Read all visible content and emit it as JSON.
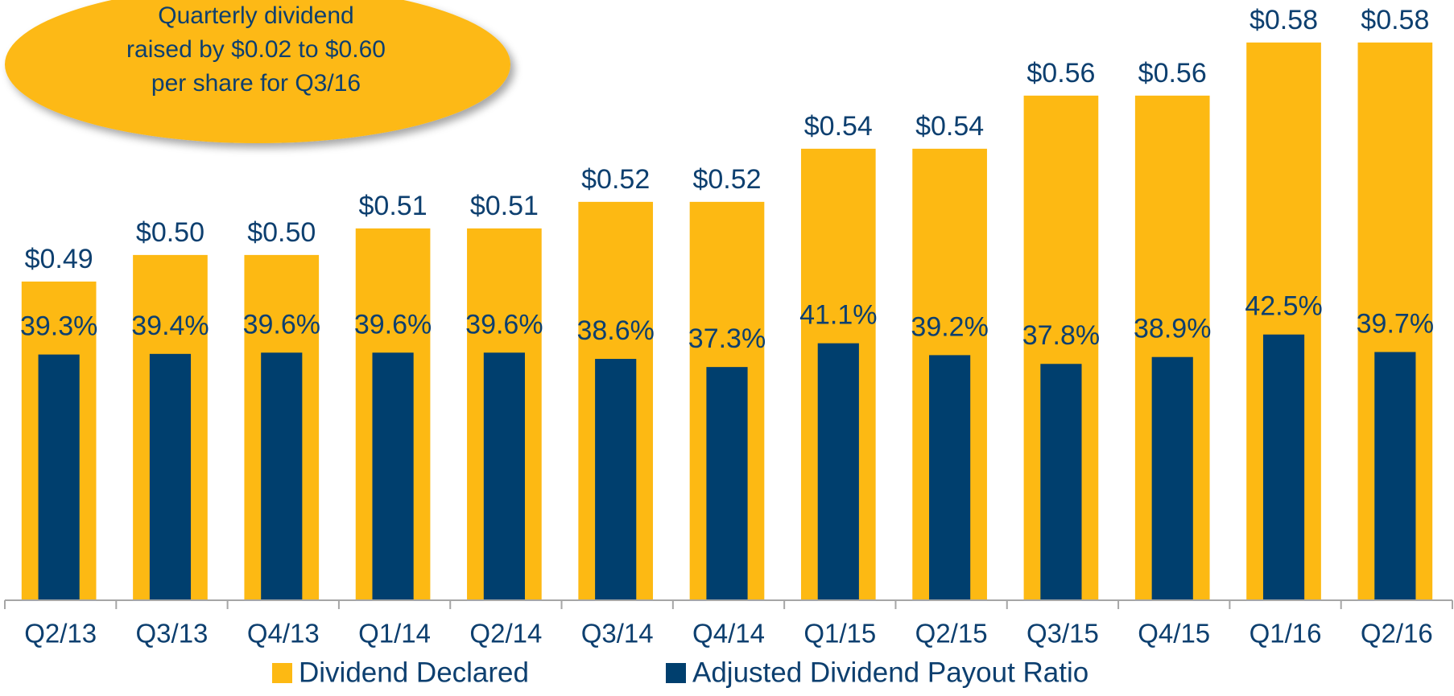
{
  "chart_data": {
    "type": "bar",
    "annotation": [
      "Quarterly dividend",
      "raised by $0.02 to $0.60",
      "per share for Q3/16"
    ],
    "categories": [
      "Q2/13",
      "Q3/13",
      "Q4/13",
      "Q1/14",
      "Q2/14",
      "Q3/14",
      "Q4/14",
      "Q1/15",
      "Q2/15",
      "Q3/15",
      "Q4/15",
      "Q1/16",
      "Q2/16"
    ],
    "series": [
      {
        "name": "Dividend Declared",
        "color": "#fdb913",
        "values": [
          0.49,
          0.5,
          0.5,
          0.51,
          0.51,
          0.52,
          0.52,
          0.54,
          0.54,
          0.56,
          0.56,
          0.58,
          0.58
        ],
        "value_labels": [
          "$0.49",
          "$0.50",
          "$0.50",
          "$0.51",
          "$0.51",
          "$0.52",
          "$0.52",
          "$0.54",
          "$0.54",
          "$0.56",
          "$0.56",
          "$0.58",
          "$0.58"
        ]
      },
      {
        "name": "Adjusted Dividend Payout Ratio",
        "color": "#003f6e",
        "axis": "y2",
        "values": [
          39.3,
          39.4,
          39.6,
          39.6,
          39.6,
          38.6,
          37.3,
          41.1,
          39.2,
          37.8,
          38.9,
          42.5,
          39.7
        ],
        "value_labels": [
          "39.3%",
          "39.4%",
          "39.6%",
          "39.6%",
          "39.6%",
          "38.6%",
          "37.3%",
          "41.1%",
          "39.2%",
          "37.8%",
          "38.9%",
          "42.5%",
          "39.7%"
        ]
      }
    ],
    "ylim": [
      0.37,
      0.596
    ],
    "y2lim": [
      0,
      96
    ],
    "legend": "bottom"
  }
}
